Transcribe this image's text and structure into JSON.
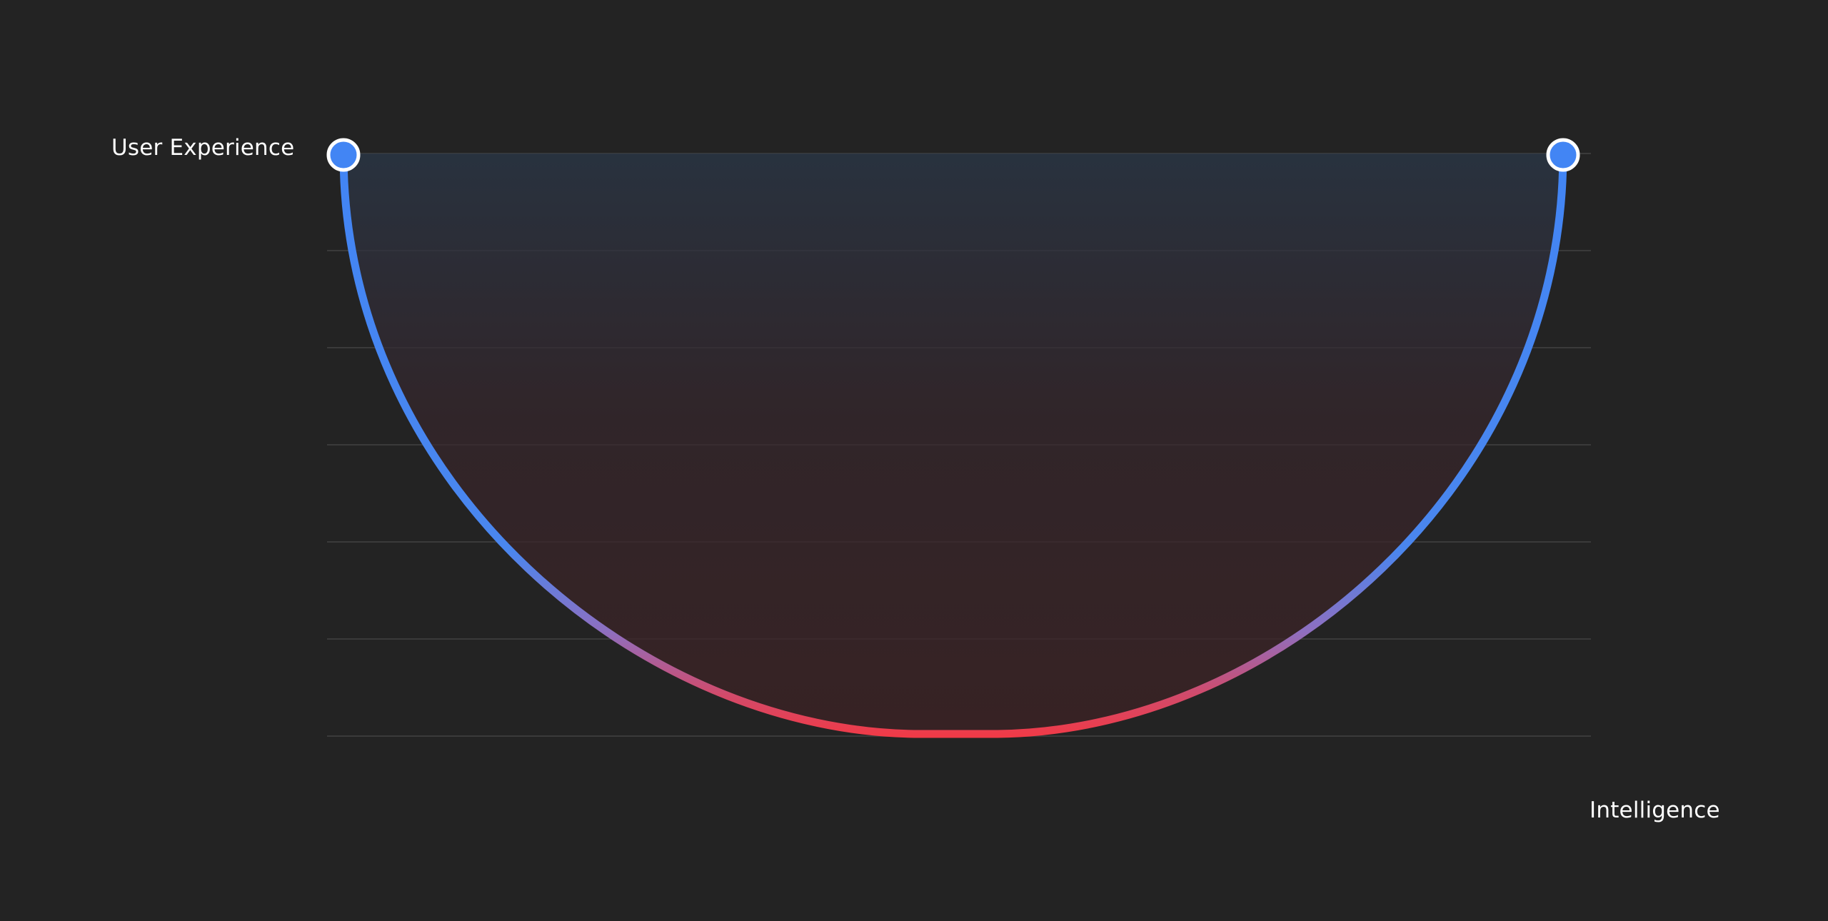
{
  "y_axis_label": "User Experience",
  "x_axis_label": "Intelligence",
  "gridline_count": 7,
  "colors": {
    "background": "#232323",
    "gridline": "#3a3a3a",
    "curve_top": "#4285f4",
    "curve_mid": "#8e6fc0",
    "curve_bottom": "#f03a47",
    "fill_top": "#2a3748",
    "fill_bottom": "#3a2426",
    "marker_fill": "#4285f4",
    "marker_stroke": "#ffffff",
    "label": "#ffffff"
  },
  "markers": [
    "left-endpoint-marker",
    "right-endpoint-marker"
  ]
}
